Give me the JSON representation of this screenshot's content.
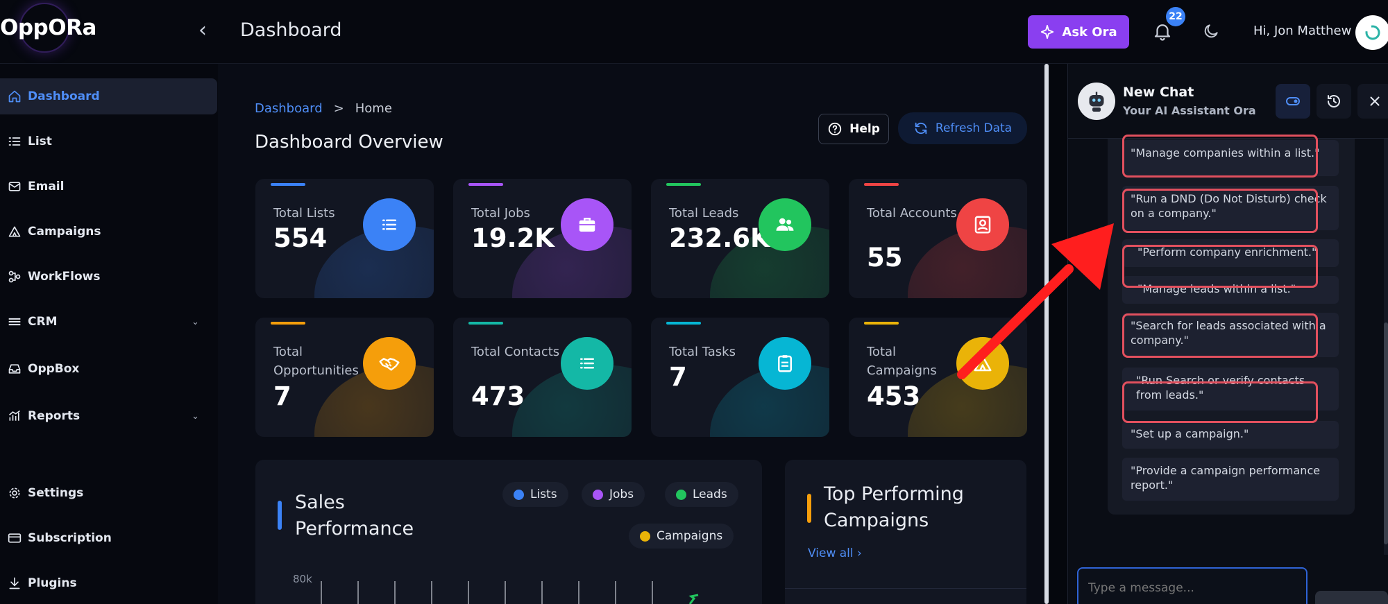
{
  "header": {
    "logo": "OppORa",
    "page_title": "Dashboard",
    "ask_button": "Ask Ora",
    "notification_count": "22",
    "greeting": "Hi, Jon Matthew"
  },
  "sidebar": {
    "items": [
      {
        "label": "Dashboard",
        "icon": "home-icon",
        "active": true
      },
      {
        "label": "List",
        "icon": "list-icon"
      },
      {
        "label": "Email",
        "icon": "mail-icon"
      },
      {
        "label": "Campaigns",
        "icon": "campaign-icon"
      },
      {
        "label": "WorkFlows",
        "icon": "workflow-icon"
      },
      {
        "label": "CRM",
        "icon": "menu-icon",
        "expandable": true
      },
      {
        "label": "OppBox",
        "icon": "inbox-icon"
      },
      {
        "label": "Reports",
        "icon": "chart-icon",
        "expandable": true
      },
      {
        "label": "Settings",
        "icon": "gear-icon"
      },
      {
        "label": "Subscription",
        "icon": "card-icon"
      },
      {
        "label": "Plugins",
        "icon": "download-icon"
      }
    ]
  },
  "main": {
    "breadcrumb": {
      "root": "Dashboard",
      "separator": ">",
      "current": "Home"
    },
    "title": "Dashboard Overview",
    "help_button": "Help",
    "refresh_button": "Refresh Data",
    "cards": [
      {
        "label": "Total Lists",
        "value": "554",
        "color": "#3b82f6",
        "icon": "list-icon"
      },
      {
        "label": "Total Jobs",
        "value": "19.2K",
        "color": "#a855f7",
        "icon": "briefcase-icon"
      },
      {
        "label": "Total Leads",
        "value": "232.6K",
        "color": "#22c55e",
        "icon": "users-icon"
      },
      {
        "label": "Total Accounts",
        "value": "55",
        "color": "#ef4444",
        "icon": "account-icon"
      },
      {
        "label": "Total Opportunities",
        "value": "7",
        "color": "#f59e0b",
        "icon": "handshake-icon"
      },
      {
        "label": "Total Contacts",
        "value": "473",
        "color": "#14b8a6",
        "icon": "contacts-icon"
      },
      {
        "label": "Total Tasks",
        "value": "7",
        "color": "#06b6d4",
        "icon": "clipboard-icon"
      },
      {
        "label": "Total Campaigns",
        "value": "453",
        "color": "#eab308",
        "icon": "campaign-icon"
      }
    ],
    "sales_panel": {
      "title": "Sales Performance",
      "legend": [
        {
          "name": "Lists",
          "color": "#3b82f6"
        },
        {
          "name": "Jobs",
          "color": "#a855f7"
        },
        {
          "name": "Leads",
          "color": "#22c55e"
        },
        {
          "name": "Campaigns",
          "color": "#eab308"
        }
      ],
      "y_tick": "80k"
    },
    "top_panel": {
      "title": "Top Performing Campaigns",
      "view_all": "View all"
    }
  },
  "chat": {
    "title": "New Chat",
    "subtitle": "Your AI Assistant Ora",
    "suggestions": [
      "\"Manage companies within a list.\"",
      "\"Run a DND (Do Not Disturb) check on a company.\"",
      "\"Perform company enrichment.\"",
      "\"Manage leads within a list.\"",
      "\"Search for leads associated with a company.\"",
      "\"Run Search or verify contacts from leads.\"",
      "\"Set up a campaign.\"",
      "\"Provide a campaign performance report.\""
    ],
    "input_placeholder": "Type a message..."
  }
}
